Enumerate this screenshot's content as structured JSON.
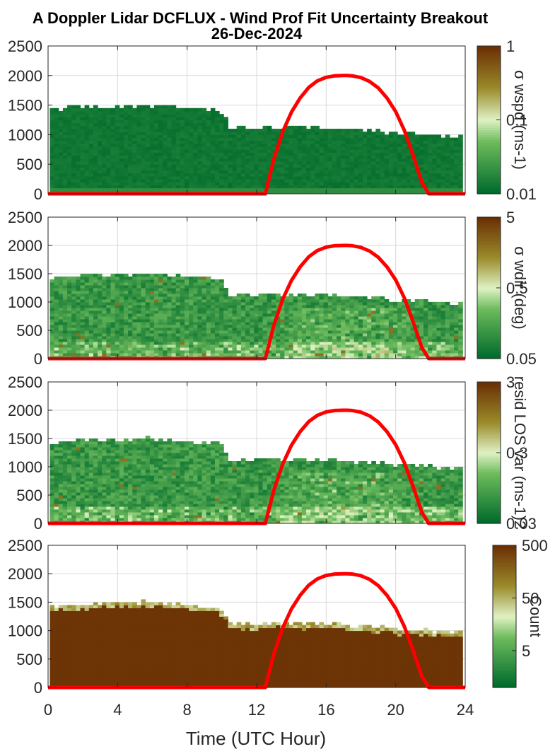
{
  "figure": {
    "title_line1": "A Doppler Lidar DCFLUX - Wind Prof Fit Uncertainty Breakout",
    "title_line2": "26-Dec-2024",
    "xlabel": "Time (UTC Hour)",
    "x_ticks": [
      "0",
      "4",
      "8",
      "12",
      "16",
      "20",
      "24"
    ],
    "y_ticks": [
      "0",
      "500",
      "1000",
      "1500",
      "2000",
      "2500"
    ]
  },
  "colors": {
    "dark_green": "#006b2c",
    "light_green": "#dff2c4",
    "olive": "#9a8a2a",
    "brown": "#6b3105",
    "sun_line": "#ff0000",
    "grid": "#d9d9d9"
  },
  "chart_data": [
    {
      "type": "heatmap",
      "variable": "σ wspd",
      "colorbar_label": "σ wspd (ms-1)",
      "colorbar_ticks": [
        "0.01",
        "0.1",
        "1"
      ],
      "clim": [
        0.01,
        1
      ],
      "color_scale": "log",
      "xlim": [
        0,
        24
      ],
      "ylim": [
        0,
        2500
      ],
      "grid": true,
      "data_top_height": {
        "hours": [
          0.25,
          1.75,
          3.25,
          5.75,
          7.75,
          9.75,
          10.5,
          12.5,
          16.5,
          20.5,
          23.75
        ],
        "height_m": [
          1400,
          1450,
          1460,
          1480,
          1430,
          1380,
          1080,
          1110,
          1090,
          1000,
          950
        ]
      },
      "dominant_value": 0.01
    },
    {
      "type": "heatmap",
      "variable": "σ wdir",
      "colorbar_label": "σ wdir (deg)",
      "colorbar_ticks": [
        "0.05",
        "0.5",
        "5"
      ],
      "clim": [
        0.05,
        5
      ],
      "color_scale": "log",
      "xlim": [
        0,
        24
      ],
      "ylim": [
        0,
        2500
      ],
      "grid": true,
      "data_top_height": {
        "hours": [
          0.25,
          1.75,
          3.25,
          5.75,
          7.75,
          9.75,
          10.5,
          12.5,
          16.5,
          20.5,
          23.75
        ],
        "height_m": [
          1400,
          1450,
          1460,
          1480,
          1430,
          1380,
          1080,
          1110,
          1090,
          1000,
          950
        ]
      }
    },
    {
      "type": "heatmap",
      "variable": "resid LOS var",
      "colorbar_label": "resid LOS var (ms-1)2",
      "colorbar_ticks": [
        "0.03",
        "0.3",
        "3"
      ],
      "clim": [
        0.03,
        3
      ],
      "color_scale": "log",
      "xlim": [
        0,
        24
      ],
      "ylim": [
        0,
        2500
      ],
      "grid": true,
      "data_top_height": {
        "hours": [
          0.25,
          1.75,
          3.25,
          5.75,
          7.75,
          9.75,
          10.5,
          12.5,
          16.5,
          20.5,
          23.75
        ],
        "height_m": [
          1400,
          1450,
          1460,
          1480,
          1430,
          1380,
          1080,
          1110,
          1090,
          1000,
          950
        ]
      }
    },
    {
      "type": "heatmap",
      "variable": "Count",
      "colorbar_label": "Count",
      "colorbar_ticks": [
        "5",
        "50",
        "500"
      ],
      "clim": [
        1,
        500
      ],
      "color_scale": "log",
      "xlim": [
        0,
        24
      ],
      "ylim": [
        0,
        2500
      ],
      "grid": true,
      "data_top_height": {
        "hours": [
          0.25,
          1.75,
          3.25,
          5.75,
          7.75,
          9.75,
          10.5,
          12.5,
          16.5,
          20.5,
          23.75
        ],
        "height_m": [
          1400,
          1450,
          1460,
          1480,
          1430,
          1380,
          1080,
          1110,
          1090,
          1000,
          950
        ]
      },
      "dominant_value": 500
    }
  ],
  "sun_curve": {
    "type": "line",
    "x": [
      0,
      12.5,
      13,
      13.5,
      14,
      14.5,
      15,
      15.5,
      16,
      16.5,
      17,
      17.2,
      17.5,
      18,
      18.5,
      19,
      19.5,
      20,
      20.5,
      21,
      21.5,
      21.9,
      24
    ],
    "y": [
      0,
      0,
      600,
      1050,
      1380,
      1620,
      1800,
      1910,
      1970,
      1995,
      2000,
      2000,
      1995,
      1965,
      1900,
      1790,
      1620,
      1390,
      1070,
      650,
      200,
      0,
      0
    ]
  }
}
